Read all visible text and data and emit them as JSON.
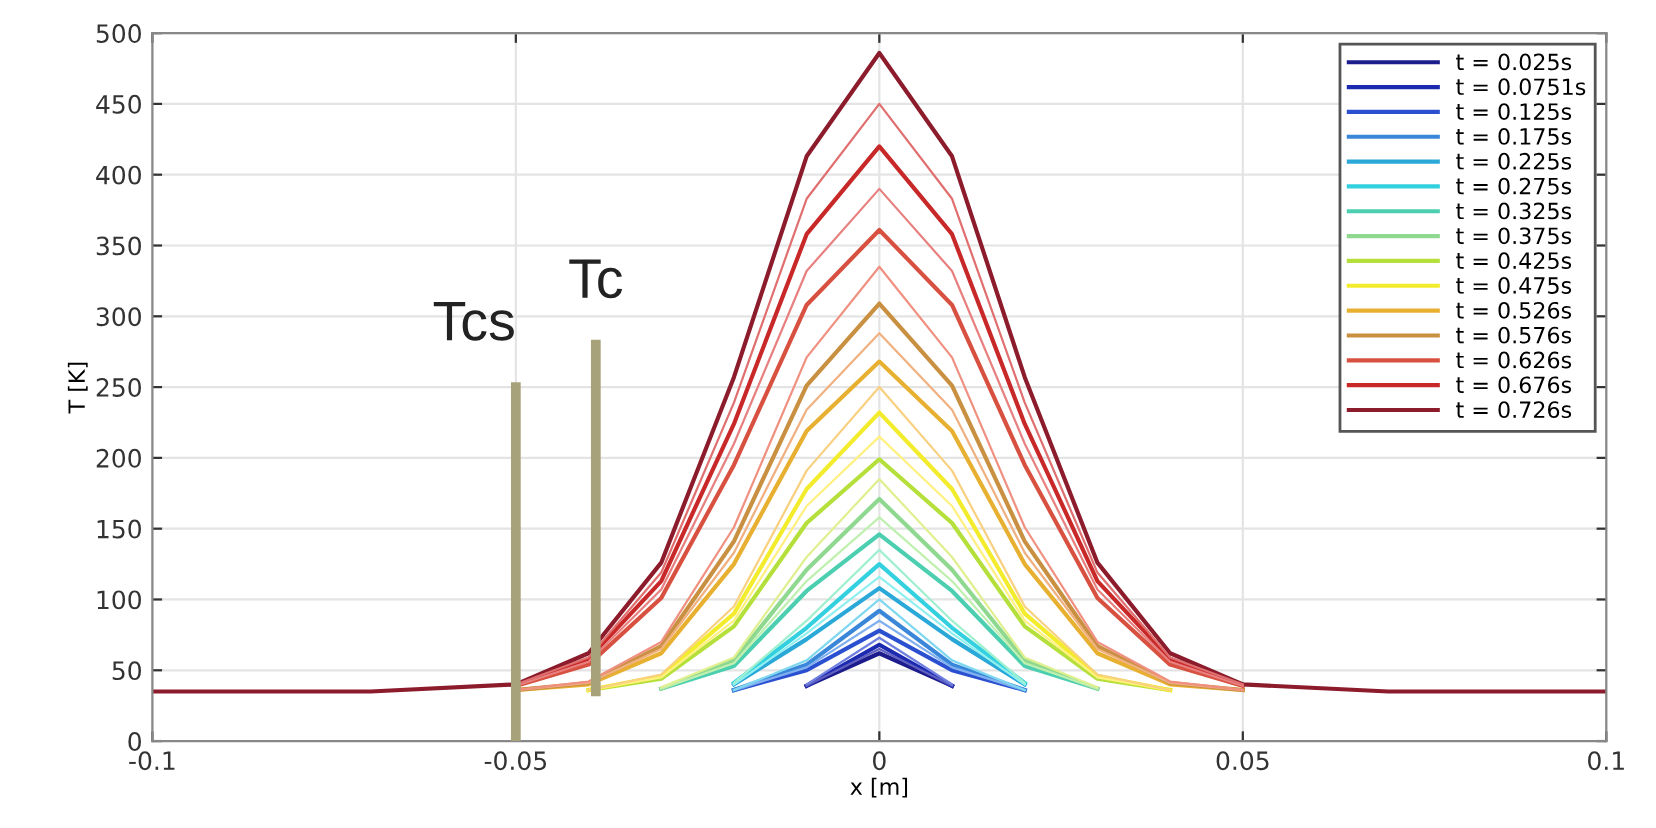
{
  "chart_data": {
    "type": "line",
    "xlabel": "x [m]",
    "ylabel": "T [K]",
    "x": [
      -0.1,
      -0.07,
      -0.05,
      -0.04,
      -0.03,
      -0.02,
      -0.01,
      0,
      0.01,
      0.02,
      0.03,
      0.04,
      0.05,
      0.07,
      0.1
    ],
    "xlim": [
      -0.1,
      0.1
    ],
    "xticks": [
      -0.1,
      -0.05,
      0,
      0.05,
      0.1
    ],
    "ylim": [
      0,
      500
    ],
    "yticks": [
      0,
      50,
      100,
      150,
      200,
      250,
      300,
      350,
      400,
      450,
      500
    ],
    "grid": true,
    "legend": "top right",
    "ref_lines": [
      {
        "axis": "x",
        "value": -0.05,
        "label": "Tcs",
        "color": "#a8a27a"
      },
      {
        "axis": "x",
        "value": -0.039,
        "label": "Tc",
        "color": "#a8a27a"
      }
    ],
    "series": [
      {
        "name": "t = 0.025s",
        "color": "#1c1c8c",
        "values": [
          null,
          null,
          null,
          null,
          null,
          null,
          39,
          62,
          39,
          null,
          null,
          null,
          null,
          null,
          null
        ]
      },
      {
        "color": "#6060c0",
        "values": [
          null,
          null,
          null,
          null,
          null,
          null,
          39,
          65,
          39,
          null,
          null,
          null,
          null,
          null,
          null
        ]
      },
      {
        "name": "t = 0.0751s",
        "color": "#1c2ab0",
        "values": [
          null,
          null,
          null,
          null,
          null,
          null,
          39,
          68,
          39,
          null,
          null,
          null,
          null,
          null,
          null
        ]
      },
      {
        "color": "#7080e0",
        "values": [
          null,
          null,
          null,
          null,
          null,
          null,
          40,
          73,
          40,
          null,
          null,
          null,
          null,
          null,
          null
        ]
      },
      {
        "name": "t = 0.125s",
        "color": "#2a50d0",
        "values": [
          null,
          null,
          null,
          null,
          null,
          36,
          50,
          78,
          50,
          36,
          null,
          null,
          null,
          null,
          null
        ]
      },
      {
        "color": "#80b0f0",
        "values": [
          null,
          null,
          null,
          null,
          null,
          36,
          52,
          85,
          52,
          36,
          null,
          null,
          null,
          null,
          null
        ]
      },
      {
        "name": "t = 0.175s",
        "color": "#3a86d8",
        "values": [
          null,
          null,
          null,
          null,
          null,
          36,
          54,
          92,
          54,
          36,
          null,
          null,
          null,
          null,
          null
        ]
      },
      {
        "color": "#80d8f0",
        "values": [
          null,
          null,
          null,
          null,
          null,
          36,
          57,
          100,
          57,
          36,
          null,
          null,
          null,
          null,
          null
        ]
      },
      {
        "name": "t = 0.225s",
        "color": "#2aa8d8",
        "values": [
          null,
          null,
          null,
          null,
          null,
          40,
          72,
          108,
          72,
          40,
          null,
          null,
          null,
          null,
          null
        ]
      },
      {
        "color": "#90f0f0",
        "values": [
          null,
          null,
          null,
          null,
          null,
          40,
          76,
          116,
          76,
          40,
          null,
          null,
          null,
          null,
          null
        ]
      },
      {
        "name": "t = 0.275s",
        "color": "#33d0e0",
        "values": [
          null,
          null,
          null,
          null,
          null,
          41,
          80,
          125,
          80,
          41,
          null,
          null,
          null,
          null,
          null
        ]
      },
      {
        "color": "#a0f0d0",
        "values": [
          null,
          null,
          null,
          null,
          null,
          41,
          85,
          135,
          85,
          41,
          null,
          null,
          null,
          null,
          null
        ]
      },
      {
        "name": "t = 0.325s",
        "color": "#4ccfb0",
        "values": [
          null,
          null,
          null,
          null,
          37,
          53,
          106,
          146,
          106,
          53,
          37,
          null,
          null,
          null,
          null
        ]
      },
      {
        "color": "#c0f0b0",
        "values": [
          null,
          null,
          null,
          null,
          37,
          55,
          113,
          158,
          113,
          55,
          37,
          null,
          null,
          null,
          null
        ]
      },
      {
        "name": "t = 0.375s",
        "color": "#8fd890",
        "values": [
          null,
          null,
          null,
          null,
          37,
          57,
          121,
          171,
          121,
          57,
          37,
          null,
          null,
          null,
          null
        ]
      },
      {
        "color": "#e0f090",
        "values": [
          null,
          null,
          null,
          null,
          38,
          59,
          130,
          185,
          130,
          59,
          38,
          null,
          null,
          null,
          null
        ]
      },
      {
        "name": "t = 0.425s",
        "color": "#b5e03c",
        "values": [
          null,
          null,
          null,
          36,
          44,
          81,
          154,
          199,
          154,
          81,
          44,
          36,
          null,
          null,
          null
        ]
      },
      {
        "color": "#fff080",
        "values": [
          null,
          null,
          null,
          36,
          45,
          85,
          166,
          215,
          166,
          85,
          45,
          36,
          null,
          null,
          null
        ]
      },
      {
        "name": "t = 0.475s",
        "color": "#f2ec2c",
        "values": [
          null,
          null,
          null,
          36,
          46,
          90,
          178,
          232,
          178,
          90,
          46,
          36,
          null,
          null,
          null
        ]
      },
      {
        "color": "#f8d080",
        "values": [
          null,
          null,
          null,
          36,
          47,
          95,
          191,
          250,
          191,
          95,
          47,
          36,
          null,
          null,
          null
        ]
      },
      {
        "name": "t = 0.526s",
        "color": "#e8b030",
        "values": [
          null,
          null,
          36,
          40,
          62,
          125,
          219,
          268,
          219,
          125,
          62,
          40,
          36,
          null,
          null
        ]
      },
      {
        "color": "#f0b080",
        "values": [
          null,
          null,
          36,
          41,
          65,
          133,
          234,
          288,
          234,
          133,
          65,
          41,
          36,
          null,
          null
        ]
      },
      {
        "name": "t = 0.576s",
        "color": "#c89040",
        "values": [
          null,
          null,
          36,
          41,
          67,
          141,
          251,
          309,
          251,
          141,
          67,
          41,
          36,
          null,
          null
        ]
      },
      {
        "color": "#f09080",
        "values": [
          null,
          null,
          36,
          42,
          70,
          151,
          271,
          335,
          271,
          151,
          70,
          42,
          36,
          null,
          null
        ]
      },
      {
        "name": "t = 0.626s",
        "color": "#d85040",
        "values": [
          null,
          null,
          39,
          54,
          101,
          195,
          308,
          361,
          308,
          195,
          101,
          54,
          39,
          null,
          null
        ]
      },
      {
        "color": "#e88080",
        "values": [
          null,
          null,
          39,
          56,
          107,
          210,
          332,
          390,
          332,
          210,
          107,
          56,
          39,
          null,
          null
        ]
      },
      {
        "name": "t = 0.676s",
        "color": "#c82828",
        "values": [
          null,
          null,
          40,
          58,
          113,
          224,
          358,
          420,
          358,
          224,
          113,
          58,
          40,
          null,
          null
        ]
      },
      {
        "color": "#e07070",
        "values": [
          null,
          null,
          40,
          59,
          119,
          239,
          383,
          450,
          383,
          239,
          119,
          59,
          40,
          null,
          null
        ]
      },
      {
        "name": "t = 0.726s",
        "color": "#8c1c2c",
        "values": [
          35,
          35,
          40,
          62,
          126,
          257,
          413,
          486,
          413,
          257,
          126,
          62,
          40,
          35,
          35
        ]
      }
    ]
  }
}
